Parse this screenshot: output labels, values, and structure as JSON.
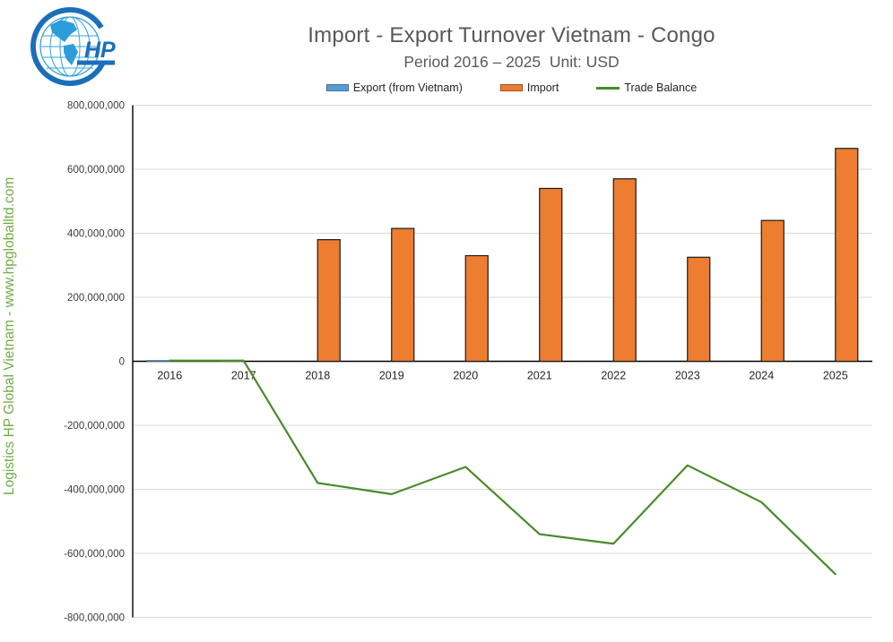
{
  "logo": {
    "monogram": "HP"
  },
  "title": "Import - Export Turnover Vietnam - Congo",
  "subtitle": "Period 2016 – 2025  Unit: USD",
  "watermark": "Logistics HP Global Vietnam - www.hpgloballtd.com",
  "legend": [
    {
      "label": "Export (from Vietnam)",
      "type": "bar",
      "color": "#5B9BD5",
      "border": "#41719C"
    },
    {
      "label": "Import",
      "type": "bar",
      "color": "#ED7D31",
      "border": "#9C501E"
    },
    {
      "label": "Trade Balance",
      "type": "line",
      "color": "#4A8A2A"
    }
  ],
  "axis": {
    "tick_color": "#3B3B3B",
    "label_color": "#262626",
    "grid_color": "#D9D9D9",
    "axis_color": "#000000"
  },
  "chart_data": {
    "type": "bar+line",
    "title": "Import - Export Turnover Vietnam - Congo",
    "subtitle": "Period 2016 – 2025  Unit: USD",
    "unit": "USD",
    "categories": [
      "2016",
      "2017",
      "2018",
      "2019",
      "2020",
      "2021",
      "2022",
      "2023",
      "2024",
      "2025"
    ],
    "series": [
      {
        "name": "Export (from Vietnam)",
        "type": "bar",
        "color": "#5B9BD5",
        "border": "#41719C",
        "values": [
          2000000,
          2000000,
          0,
          0,
          0,
          0,
          0,
          0,
          0,
          0
        ]
      },
      {
        "name": "Import",
        "type": "bar",
        "color": "#ED7D31",
        "border": "#1A1A1A",
        "values": [
          0,
          0,
          380000000,
          415000000,
          330000000,
          540000000,
          570000000,
          325000000,
          440000000,
          665000000
        ]
      },
      {
        "name": "Trade Balance",
        "type": "line",
        "color": "#4A8A2A",
        "values": [
          2000000,
          2000000,
          -380000000,
          -415000000,
          -330000000,
          -540000000,
          -570000000,
          -325000000,
          -440000000,
          -665000000
        ]
      }
    ],
    "ylim": [
      -800000000,
      800000000
    ],
    "ytick_step": 200000000,
    "grid": true,
    "legend_position": "top",
    "legend_entries": [
      "Export (from Vietnam)",
      "Import",
      "Trade Balance"
    ]
  }
}
